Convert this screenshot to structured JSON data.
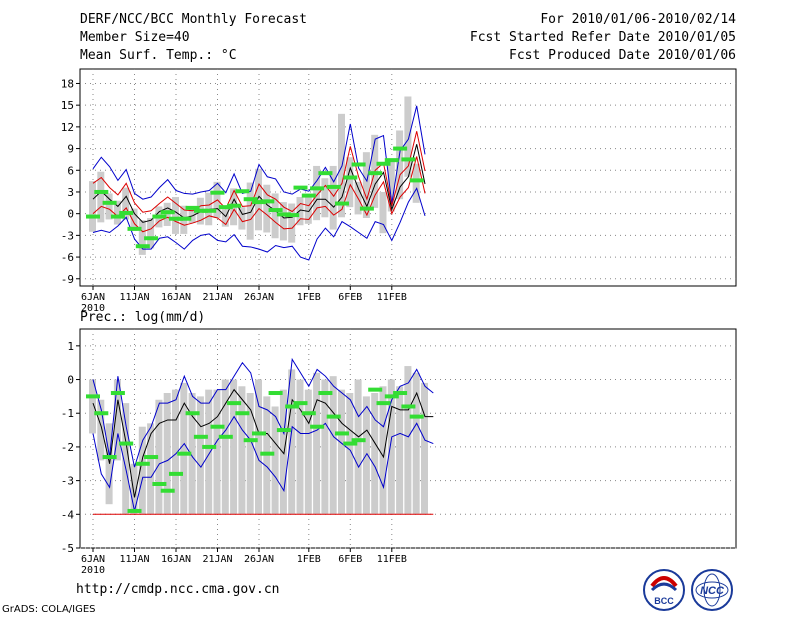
{
  "header": {
    "title": "DERF/NCC/BCC Monthly Forecast",
    "member": "Member Size=40",
    "variable": "Mean Surf. Temp.: °C",
    "period": "For 2010/01/06-2010/02/14",
    "started": "Fcst Started Refer Date 2010/01/05",
    "produced": "Fcst Produced Date 2010/01/06"
  },
  "footer": {
    "url": "http://cmdp.ncc.cma.gov.cn",
    "grads": "GrADS: COLA/IGES",
    "logo_left": "BCC",
    "logo_right": "NCC"
  },
  "colors": {
    "envelope": "#0000cc",
    "spread": "#dd0000",
    "mean": "#000000",
    "obs": "#33dd33",
    "box": "#cccccc",
    "grid": "#888888"
  },
  "chart_data": [
    {
      "type": "line",
      "title": "Mean Surf. Temp.: °C",
      "xlabel": "",
      "ylabel": "",
      "ylim": [
        -10,
        20
      ],
      "yticks": [
        -9,
        -6,
        -3,
        0,
        3,
        6,
        9,
        12,
        15,
        18
      ],
      "xtick_labels": [
        "6JAN",
        "11JAN",
        "16JAN",
        "21JAN",
        "26JAN",
        "1FEB",
        "6FEB",
        "11FEB"
      ],
      "x_year_label": "2010",
      "xtick_days": [
        0,
        5,
        10,
        15,
        20,
        26,
        31,
        36
      ],
      "days": 40,
      "series": [
        {
          "name": "max",
          "values": [
            6.2,
            7.8,
            6.5,
            4.6,
            6.1,
            2.8,
            2.0,
            2.3,
            3.6,
            4.7,
            3.2,
            2.8,
            2.7,
            3.0,
            3.2,
            4.2,
            2.9,
            5.5,
            2.8,
            3.1,
            6.8,
            5.1,
            4.8,
            3.0,
            2.7,
            3.4,
            3.1,
            4.6,
            6.4,
            4.4,
            6.6,
            12.4,
            6.3,
            4.5,
            10.3,
            10.8,
            1.4,
            8.7,
            10.3,
            14.9,
            8.2
          ]
        },
        {
          "name": "upper",
          "values": [
            4.2,
            5.0,
            3.6,
            2.6,
            4.2,
            1.5,
            0.2,
            0.4,
            1.4,
            2.3,
            1.4,
            0.5,
            0.4,
            1.1,
            1.2,
            1.9,
            0.7,
            3.2,
            1.0,
            1.1,
            4.1,
            2.6,
            2.0,
            0.9,
            0.3,
            1.4,
            1.1,
            2.6,
            3.9,
            2.4,
            4.2,
            9.3,
            5.1,
            2.0,
            6.0,
            7.0,
            1.1,
            5.4,
            6.6,
            11.4,
            5.9
          ]
        },
        {
          "name": "mean",
          "values": [
            2.0,
            3.1,
            2.0,
            1.0,
            2.4,
            0.0,
            -1.2,
            -0.9,
            0.3,
            0.8,
            0.2,
            -0.6,
            -0.3,
            0.3,
            0.6,
            0.7,
            -0.4,
            2.0,
            -0.1,
            0.2,
            2.4,
            1.2,
            0.4,
            -0.6,
            -0.5,
            0.5,
            0.3,
            2.0,
            2.0,
            0.9,
            2.3,
            6.3,
            3.4,
            1.0,
            4.1,
            5.7,
            0.6,
            3.7,
            5.1,
            9.6,
            4.1
          ]
        },
        {
          "name": "lower",
          "values": [
            0.0,
            1.0,
            0.6,
            -0.4,
            0.8,
            -1.4,
            -2.5,
            -2.1,
            -1.0,
            -0.5,
            -1.1,
            -1.6,
            -1.3,
            -0.9,
            -0.3,
            -0.6,
            -1.5,
            0.6,
            -1.1,
            -0.8,
            0.7,
            -0.2,
            -1.2,
            -2.1,
            -2.0,
            -0.7,
            -0.8,
            0.8,
            1.0,
            -0.2,
            0.6,
            4.0,
            2.0,
            -0.2,
            2.6,
            4.4,
            0.0,
            2.3,
            3.6,
            7.9,
            2.8
          ]
        },
        {
          "name": "min",
          "values": [
            -2.6,
            -2.3,
            -2.6,
            -1.7,
            -0.5,
            -3.5,
            -4.9,
            -4.9,
            -3.4,
            -3.2,
            -4.0,
            -4.9,
            -3.7,
            -3.0,
            -2.8,
            -3.7,
            -3.9,
            -2.9,
            -4.5,
            -4.6,
            -4.9,
            -5.3,
            -4.4,
            -4.7,
            -4.5,
            -6.0,
            -6.4,
            -3.5,
            -2.0,
            -3.2,
            -1.1,
            -1.8,
            -2.6,
            -3.4,
            -1.1,
            -1.5,
            -3.7,
            -1.2,
            1.6,
            3.5,
            -0.3
          ]
        },
        {
          "name": "obs",
          "values": [
            -0.4,
            3.0,
            1.5,
            -0.4,
            0.1,
            -2.1,
            -4.5,
            -3.4,
            -0.4,
            0.2,
            -0.7,
            -0.7,
            0.8,
            0.4,
            0.4,
            2.9,
            0.9,
            1.1,
            3.1,
            2.0,
            1.6,
            1.7,
            0.5,
            -0.1,
            -0.2,
            3.6,
            2.5,
            3.5,
            5.6,
            3.7,
            1.4,
            5.0,
            6.8,
            0.7,
            5.6,
            6.9,
            7.4,
            9.0,
            7.5,
            4.6,
            null
          ]
        },
        {
          "name": "box_top",
          "values": [
            4.5,
            5.8,
            2.8,
            1.8,
            3.6,
            0.7,
            -0.9,
            -0.6,
            1.0,
            1.5,
            2.3,
            1.1,
            0.7,
            2.2,
            2.9,
            4.4,
            0.6,
            3.5,
            0.9,
            4.3,
            6.2,
            4.0,
            2.8,
            1.6,
            1.4,
            2.3,
            2.6,
            6.6,
            4.9,
            6.6,
            13.8,
            7.8,
            4.4,
            8.5,
            10.9,
            3.0,
            7.4,
            11.5,
            16.2,
            6.9,
            null
          ]
        },
        {
          "name": "box_bottom",
          "values": [
            -2.5,
            -1.2,
            -0.8,
            -1.5,
            -0.8,
            -2.4,
            -5.7,
            -4.8,
            -1.9,
            -1.7,
            -2.8,
            -2.8,
            -1.3,
            -1.5,
            -1.6,
            -0.6,
            -1.8,
            -1.6,
            -2.2,
            -3.6,
            -2.3,
            -2.6,
            -3.4,
            -3.7,
            -4.0,
            -1.6,
            -1.4,
            -0.9,
            -0.5,
            -2.2,
            -0.5,
            0.9,
            -0.1,
            -0.6,
            0.8,
            -2.7,
            0.3,
            2.0,
            5.1,
            1.5,
            null
          ]
        }
      ]
    },
    {
      "type": "line",
      "title": "Prec.: log(mm/d)",
      "xlabel": "",
      "ylabel": "",
      "ylim": [
        -5,
        1.5
      ],
      "yticks": [
        -5,
        -4,
        -3,
        -2,
        -1,
        0,
        1
      ],
      "xtick_labels": [
        "6JAN",
        "11JAN",
        "16JAN",
        "21JAN",
        "26JAN",
        "1FEB",
        "6FEB",
        "11FEB"
      ],
      "x_year_label": "2010",
      "xtick_days": [
        0,
        5,
        10,
        15,
        20,
        26,
        31,
        36
      ],
      "days": 40,
      "series": [
        {
          "name": "max",
          "values": [
            0.0,
            -0.9,
            -2.3,
            0.1,
            -1.4,
            -2.6,
            -1.8,
            -1.4,
            -0.7,
            -0.7,
            -0.6,
            0.1,
            -0.5,
            -0.7,
            -0.7,
            -0.3,
            -0.3,
            0.1,
            0.5,
            0.2,
            -0.8,
            -0.9,
            -1.1,
            -1.6,
            0.6,
            0.2,
            -0.2,
            0.3,
            0.1,
            -0.2,
            -0.4,
            -0.6,
            -1.1,
            -0.8,
            -1.2,
            -1.4,
            -0.6,
            -0.2,
            -0.1,
            0.3,
            -0.2,
            -0.4
          ]
        },
        {
          "name": "mean",
          "values": [
            -0.7,
            -1.4,
            -2.5,
            -0.6,
            -1.9,
            -3.5,
            -2.3,
            -1.6,
            -1.3,
            -1.2,
            -1.2,
            -0.7,
            -1.1,
            -1.4,
            -1.3,
            -1.1,
            -0.7,
            -0.3,
            -0.6,
            -0.9,
            -1.6,
            -1.6,
            -1.9,
            -2.2,
            -0.6,
            -0.9,
            -1.3,
            -0.6,
            -0.7,
            -1.0,
            -1.3,
            -1.5,
            -1.7,
            -1.5,
            -1.9,
            -2.3,
            -0.8,
            -0.9,
            -0.9,
            -0.4,
            -1.1,
            -1.1
          ]
        },
        {
          "name": "min",
          "values": [
            -1.6,
            -2.8,
            -3.2,
            -1.6,
            -2.7,
            -3.9,
            -2.9,
            -2.9,
            -2.5,
            -2.4,
            -2.2,
            -1.9,
            -2.3,
            -2.6,
            -2.2,
            -1.8,
            -1.5,
            -1.1,
            -1.5,
            -1.8,
            -2.4,
            -2.6,
            -2.9,
            -3.3,
            -1.4,
            -1.6,
            -1.6,
            -1.5,
            -1.3,
            -1.7,
            -1.9,
            -2.1,
            -2.6,
            -2.2,
            -2.6,
            -3.2,
            -1.7,
            -1.6,
            -1.7,
            -1.3,
            -1.8,
            -1.9
          ]
        },
        {
          "name": "floor",
          "values": [
            -4,
            -4,
            -4,
            -4,
            -4,
            -4,
            -4,
            -4,
            -4,
            -4,
            -4,
            -4,
            -4,
            -4,
            -4,
            -4,
            -4,
            -4,
            -4,
            -4,
            -4,
            -4,
            -4,
            -4,
            -4,
            -4,
            -4,
            -4,
            -4,
            -4,
            -4,
            -4,
            -4,
            -4,
            -4,
            -4,
            -4,
            -4,
            -4,
            -4,
            -4,
            -4
          ]
        },
        {
          "name": "obs",
          "values": [
            -0.5,
            -1.0,
            -2.3,
            -0.4,
            -1.9,
            -3.9,
            -2.5,
            -2.3,
            -3.1,
            -3.3,
            -2.8,
            -2.2,
            -1.0,
            -1.7,
            -2.0,
            -1.4,
            -1.7,
            -0.7,
            -1.0,
            -1.8,
            -1.6,
            -2.2,
            -0.4,
            -1.5,
            -0.8,
            -0.7,
            -1.0,
            -1.4,
            -0.4,
            -1.1,
            -1.6,
            -1.9,
            -1.8,
            null,
            -0.3,
            -0.7,
            -0.5,
            -0.4,
            -0.8,
            -1.1,
            null,
            null
          ]
        },
        {
          "name": "box_top",
          "values": [
            0.0,
            -0.6,
            -1.3,
            0.0,
            -0.7,
            -2.5,
            -1.4,
            -1.3,
            -0.6,
            -0.4,
            -0.3,
            -0.1,
            -0.4,
            -0.5,
            -0.3,
            -0.3,
            0.0,
            0.0,
            -0.2,
            -0.4,
            0.0,
            -0.5,
            -0.8,
            -0.3,
            0.3,
            0.0,
            -0.3,
            0.2,
            0.0,
            0.1,
            -0.3,
            -0.4,
            0.0,
            -0.5,
            -0.4,
            -0.2,
            0.0,
            -0.2,
            0.4,
            0.2,
            -0.1,
            null
          ]
        },
        {
          "name": "box_bottom",
          "values": [
            -1.6,
            -2.4,
            -3.7,
            -2.4,
            -4.0,
            -4.0,
            -4.0,
            -4.0,
            -4.0,
            -4.0,
            -4.0,
            -4.0,
            -4.0,
            -4.0,
            -4.0,
            -4.0,
            -4.0,
            -4.0,
            -4.0,
            -4.0,
            -4.0,
            -4.0,
            -4.0,
            -4.0,
            -4.0,
            -4.0,
            -4.0,
            -4.0,
            -4.0,
            -4.0,
            -4.0,
            -4.0,
            -4.0,
            -4.0,
            -4.0,
            -4.0,
            -4.0,
            -4.0,
            -4.0,
            -4.0,
            -4.0,
            null
          ]
        }
      ],
      "sub_label": "Prec.: log(mm/d)"
    }
  ]
}
